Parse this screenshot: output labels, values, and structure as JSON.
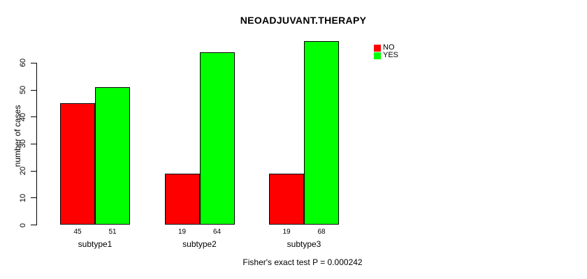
{
  "chart_data": {
    "type": "bar",
    "title": "NEOADJUVANT.THERAPY",
    "ylabel": "number of cases",
    "xlabel": "",
    "categories": [
      "subtype1",
      "subtype2",
      "subtype3"
    ],
    "series": [
      {
        "name": "NO",
        "color": "#ff0000",
        "values": [
          45,
          19,
          19
        ]
      },
      {
        "name": "YES",
        "color": "#00ff00",
        "values": [
          51,
          64,
          68
        ]
      }
    ],
    "yticks": [
      0,
      10,
      20,
      30,
      40,
      50,
      60
    ],
    "ylim": [
      0,
      68
    ],
    "grid": false,
    "bar_value_labels_shown": true,
    "legend_position": "top-right",
    "annotation": "Fisher's exact test P = 0.000242"
  }
}
